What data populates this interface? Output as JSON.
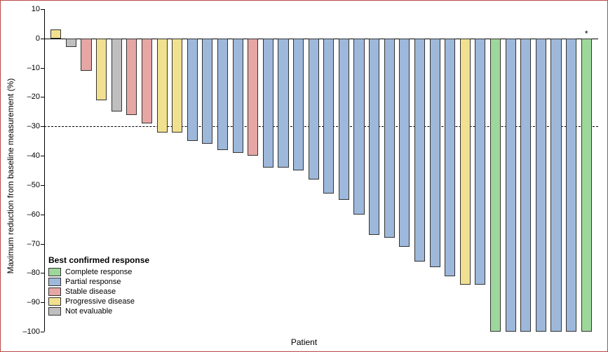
{
  "chart": {
    "type": "bar",
    "title": "Best confirmed response",
    "xlabel": "Patient",
    "ylabel": "Maximum reduction from baseline measurement (%)",
    "label_fontsize": 12,
    "tick_fontsize": 11,
    "ylim": [
      -100,
      10
    ],
    "ytick_step": 10,
    "reference_line": -30,
    "reference_dash": "3,3",
    "background_color": "#ffffff",
    "border_color": "#b84a4a",
    "axis_color": "#000000",
    "bar_border_color": "#333333",
    "bar_border_width": 1,
    "bar_gap_ratio": 0.3,
    "categories": {
      "complete": {
        "label": "Complete response",
        "color": "#9ed79c"
      },
      "partial": {
        "label": "Partial response",
        "color": "#9db8da"
      },
      "stable": {
        "label": "Stable disease",
        "color": "#e6a6a4"
      },
      "progressive": {
        "label": "Progressive disease",
        "color": "#f1e08f"
      },
      "not_eval": {
        "label": "Not evaluable",
        "color": "#bfbfbf"
      }
    },
    "legend_order": [
      "complete",
      "partial",
      "stable",
      "progressive",
      "not_eval"
    ],
    "bars": [
      {
        "value": 3,
        "cat": "progressive"
      },
      {
        "value": -3,
        "cat": "not_eval"
      },
      {
        "value": -11,
        "cat": "stable"
      },
      {
        "value": -21,
        "cat": "progressive"
      },
      {
        "value": -25,
        "cat": "not_eval"
      },
      {
        "value": -26,
        "cat": "stable"
      },
      {
        "value": -29,
        "cat": "stable"
      },
      {
        "value": -32,
        "cat": "progressive"
      },
      {
        "value": -32,
        "cat": "progressive"
      },
      {
        "value": -35,
        "cat": "partial"
      },
      {
        "value": -36,
        "cat": "partial"
      },
      {
        "value": -38,
        "cat": "partial"
      },
      {
        "value": -39,
        "cat": "partial"
      },
      {
        "value": -40,
        "cat": "stable"
      },
      {
        "value": -44,
        "cat": "partial"
      },
      {
        "value": -44,
        "cat": "partial"
      },
      {
        "value": -45,
        "cat": "partial"
      },
      {
        "value": -48,
        "cat": "partial"
      },
      {
        "value": -53,
        "cat": "partial"
      },
      {
        "value": -55,
        "cat": "partial"
      },
      {
        "value": -60,
        "cat": "partial"
      },
      {
        "value": -67,
        "cat": "partial"
      },
      {
        "value": -68,
        "cat": "partial"
      },
      {
        "value": -71,
        "cat": "partial"
      },
      {
        "value": -76,
        "cat": "partial"
      },
      {
        "value": -78,
        "cat": "partial"
      },
      {
        "value": -81,
        "cat": "partial"
      },
      {
        "value": -84,
        "cat": "progressive"
      },
      {
        "value": -84,
        "cat": "partial"
      },
      {
        "value": -100,
        "cat": "complete"
      },
      {
        "value": -100,
        "cat": "partial"
      },
      {
        "value": -100,
        "cat": "partial"
      },
      {
        "value": -100,
        "cat": "partial"
      },
      {
        "value": -100,
        "cat": "partial"
      },
      {
        "value": -100,
        "cat": "partial"
      },
      {
        "value": -100,
        "cat": "complete",
        "asterisk": true
      }
    ]
  }
}
